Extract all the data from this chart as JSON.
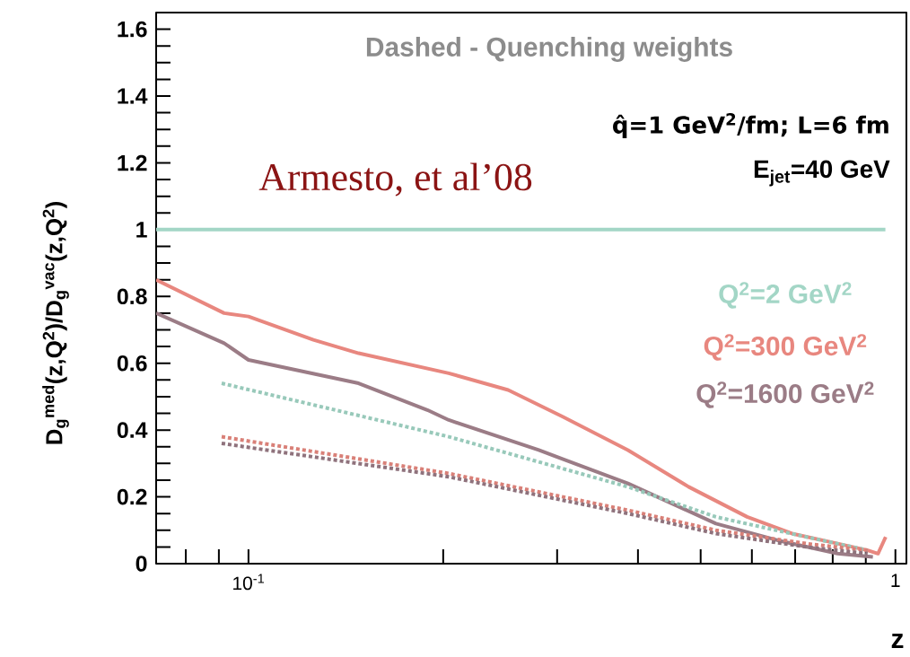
{
  "chart_data": {
    "type": "line",
    "xlabel": "z",
    "ylabel": "D$_{g}$$^{med}$(z,Q$^{2}$)/D$_{g}$$^{vac}$(z,Q$^{2}$)",
    "annotations": [
      "Dashed - Quenching weights",
      "q̂=1 GeV$^{2}$/fm; L=6 fm",
      "E$_{jet}$=40 GeV",
      "Armesto, et al’08"
    ],
    "log": "x",
    "xlim": [
      0.072,
      1.04
    ],
    "ylim": [
      0,
      1.65
    ],
    "xticks": [
      {
        "value": 0.08,
        "label": null
      },
      {
        "value": 0.09,
        "label": null
      },
      {
        "value": 0.1,
        "label": "10$^{-1}$"
      },
      {
        "value": 0.2,
        "label": null
      },
      {
        "value": 0.3,
        "label": null
      },
      {
        "value": 0.4,
        "label": null
      },
      {
        "value": 0.5,
        "label": null
      },
      {
        "value": 0.6,
        "label": null
      },
      {
        "value": 0.7,
        "label": null
      },
      {
        "value": 0.8,
        "label": null
      },
      {
        "value": 0.9,
        "label": null
      },
      {
        "value": 1,
        "label": "1"
      }
    ],
    "yticks": [
      0,
      {
        "value": 0.05,
        "label": null
      },
      {
        "value": 0.1,
        "label": null
      },
      {
        "value": 0.15,
        "label": null
      },
      0.2,
      {
        "value": 0.25,
        "label": null
      },
      {
        "value": 0.3,
        "label": null
      },
      {
        "value": 0.35,
        "label": null
      },
      0.4,
      {
        "value": 0.45,
        "label": null
      },
      {
        "value": 0.5,
        "label": null
      },
      {
        "value": 0.55,
        "label": null
      },
      0.6,
      {
        "value": 0.65,
        "label": null
      },
      {
        "value": 0.7,
        "label": null
      },
      {
        "value": 0.75,
        "label": null
      },
      0.8,
      {
        "value": 0.85,
        "label": null
      },
      {
        "value": 0.9,
        "label": null
      },
      {
        "value": 0.95,
        "label": null
      },
      1,
      {
        "value": 1.05,
        "label": null
      },
      {
        "value": 1.1,
        "label": null
      },
      {
        "value": 1.15,
        "label": null
      },
      1.2,
      {
        "value": 1.25,
        "label": null
      },
      {
        "value": 1.3,
        "label": null
      },
      {
        "value": 1.35,
        "label": null
      },
      1.4,
      {
        "value": 1.45,
        "label": null
      },
      {
        "value": 1.5,
        "label": null
      },
      {
        "value": 1.55,
        "label": null
      },
      1.6
    ],
    "series": [
      {
        "name": "Q$^{2}$=2 GeV$^{2}$",
        "color": "#a3d6c6",
        "line_style": "solid",
        "x": [
          0.072,
          0.3,
          0.965
        ],
        "values": [
          1,
          1,
          1
        ]
      },
      {
        "name": "Q$^{2}$=300 GeV$^{2}$",
        "color": "#e8877f",
        "line_style": "solid",
        "x": [
          0.072,
          0.0917,
          0.1,
          0.126,
          0.148,
          0.204,
          0.252,
          0.306,
          0.386,
          0.479,
          0.59,
          0.692,
          0.814,
          0.906,
          0.94,
          0.966
        ],
        "values": [
          0.85,
          0.75,
          0.74,
          0.67,
          0.63,
          0.57,
          0.52,
          0.44,
          0.34,
          0.23,
          0.14,
          0.09,
          0.06,
          0.04,
          0.03,
          0.08
        ]
      },
      {
        "name": "Q$^{2}$=1600 GeV$^{2}$",
        "color": "#9b7c86",
        "line_style": "solid",
        "x": [
          0.072,
          0.0917,
          0.1,
          0.148,
          0.189,
          0.204,
          0.281,
          0.386,
          0.528,
          0.657,
          0.814,
          0.923
        ],
        "values": [
          0.75,
          0.66,
          0.61,
          0.54,
          0.46,
          0.43,
          0.34,
          0.24,
          0.12,
          0.07,
          0.03,
          0.02
        ]
      },
      {
        "color": "#98c9ba",
        "line_style": "dashed",
        "x": [
          0.0909,
          0.204,
          0.386,
          0.528,
          0.728,
          0.906
        ],
        "values": [
          0.54,
          0.38,
          0.23,
          0.14,
          0.08,
          0.04
        ]
      },
      {
        "color": "#d98078",
        "line_style": "dashed",
        "x": [
          0.0909,
          0.204,
          0.386,
          0.528,
          0.728,
          0.906
        ],
        "values": [
          0.38,
          0.27,
          0.16,
          0.1,
          0.06,
          0.04
        ]
      },
      {
        "color": "#8f727c",
        "line_style": "dashed",
        "x": [
          0.0909,
          0.204,
          0.386,
          0.528,
          0.728,
          0.906
        ],
        "values": [
          0.36,
          0.26,
          0.15,
          0.09,
          0.05,
          0.03
        ]
      }
    ]
  }
}
